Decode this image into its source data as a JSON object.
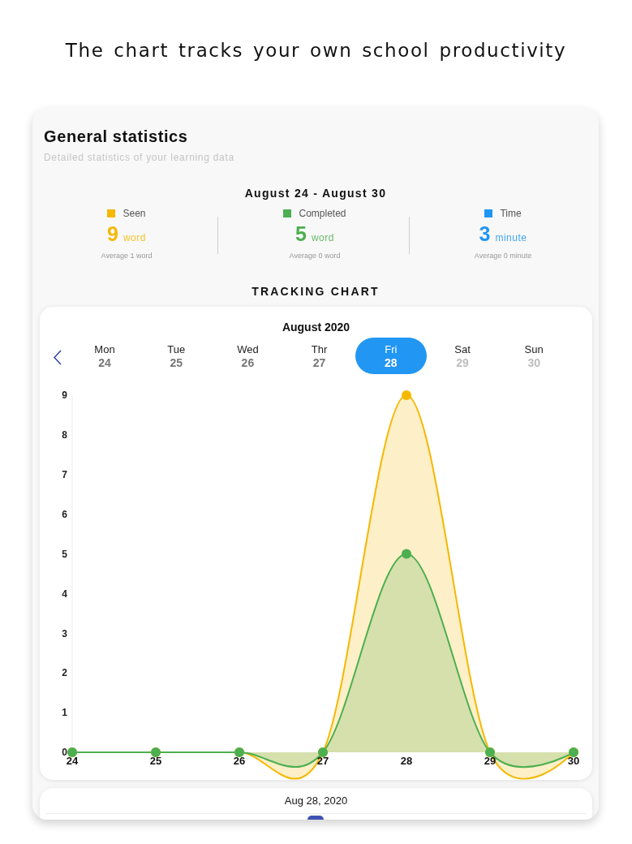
{
  "chart_data": {
    "type": "area",
    "title": "General statistics",
    "subtitle": "Detailed statistics of your learning data",
    "annotations": [
      "The chart tracks your own school productivity",
      "August 24 - August 30",
      "9",
      "word",
      "Average 1 word",
      "5",
      "word",
      "Average 0 word",
      "Time",
      "3",
      "minute",
      "Average 0 minute",
      "TRACKING CHART",
      "August 2020",
      "Mon",
      "Tue",
      "Wed",
      "Thr",
      "Fri",
      "Sat",
      "Sun",
      "Aug 28, 2020"
    ],
    "categories": [
      "24",
      "25",
      "26",
      "27",
      "28",
      "29",
      "30"
    ],
    "series": [
      {
        "name": "Seen",
        "color": "#f5b800",
        "values": [
          0,
          0,
          0,
          0,
          9,
          0,
          0
        ]
      },
      {
        "name": "Completed",
        "color": "#4caf50",
        "values": [
          0,
          0,
          0,
          0,
          5,
          0,
          0
        ]
      }
    ],
    "ylim": [
      0,
      9
    ],
    "yticks": [
      0,
      1,
      2,
      3,
      4,
      5,
      6,
      7,
      8,
      9
    ],
    "legend": "top",
    "marker": "circle",
    "line_style": "solid"
  }
}
